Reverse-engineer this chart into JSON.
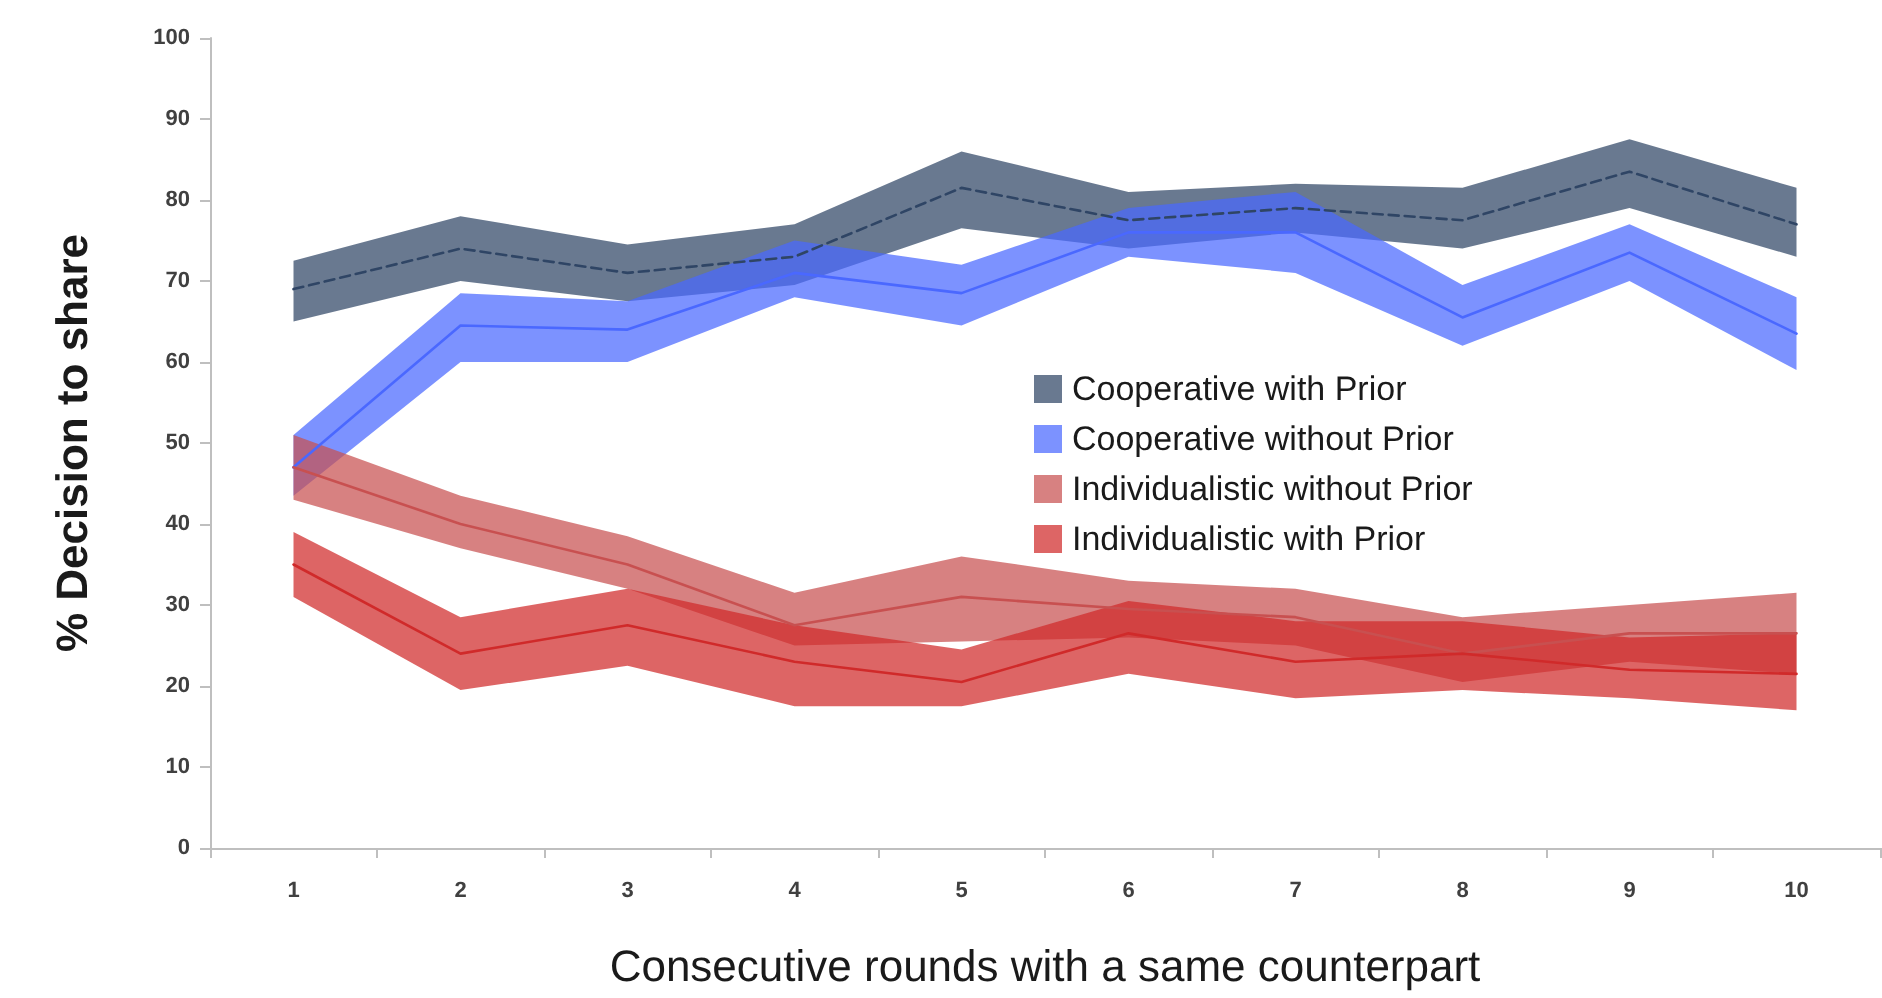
{
  "chart_data": {
    "type": "line",
    "xlabel": "Consecutive rounds with a same counterpart",
    "ylabel": "% Decision to share",
    "categories": [
      "1",
      "2",
      "3",
      "4",
      "5",
      "6",
      "7",
      "8",
      "9",
      "10"
    ],
    "ylim": [
      0,
      100
    ],
    "yticks": [
      0,
      10,
      20,
      30,
      40,
      50,
      60,
      70,
      80,
      90,
      100
    ],
    "grid": false,
    "legend": "right",
    "marker": "none",
    "series": [
      {
        "name": "Cooperative with Prior",
        "color": "#2f4565",
        "line_style": "dashed",
        "values": [
          69,
          74,
          71,
          73,
          81.5,
          77.5,
          79,
          77.5,
          83.5,
          77
        ],
        "lower": [
          65,
          70,
          67.5,
          69.5,
          76.5,
          74,
          76,
          74,
          79,
          73
        ],
        "upper": [
          72.5,
          78,
          74.5,
          77,
          86,
          81,
          82,
          81.5,
          87.5,
          81.5
        ]
      },
      {
        "name": "Cooperative without Prior",
        "color": "#4a68ff",
        "line_style": "solid",
        "values": [
          47,
          64.5,
          64,
          71,
          68.5,
          76,
          76,
          65.5,
          73.5,
          63.5
        ],
        "lower": [
          43.5,
          60,
          60,
          68,
          64.5,
          73,
          71,
          62,
          70,
          59
        ],
        "upper": [
          51,
          68.5,
          67.5,
          75,
          72,
          79,
          81,
          69.5,
          77,
          68
        ]
      },
      {
        "name": "Individualistic without Prior",
        "color": "#c85050",
        "line_style": "solid",
        "values": [
          47,
          40,
          35,
          27.5,
          31,
          29.5,
          28.5,
          24,
          26.5,
          26.5
        ],
        "lower": [
          43,
          37,
          32,
          25,
          25.5,
          26,
          25,
          20.5,
          23,
          21.5
        ],
        "upper": [
          51,
          43.5,
          38.5,
          31.5,
          36,
          33,
          32,
          28.5,
          30,
          31.5
        ]
      },
      {
        "name": "Individualistic with Prior",
        "color": "#d02a2a",
        "line_style": "solid",
        "values": [
          35,
          24,
          27.5,
          23,
          20.5,
          26.5,
          23,
          24,
          22,
          21.5
        ],
        "lower": [
          31,
          19.5,
          22.5,
          17.5,
          17.5,
          21.5,
          18.5,
          19.5,
          18.5,
          17
        ],
        "upper": [
          39,
          28.5,
          32,
          27.5,
          24.5,
          30.5,
          28,
          28,
          26,
          26.5
        ]
      }
    ]
  }
}
